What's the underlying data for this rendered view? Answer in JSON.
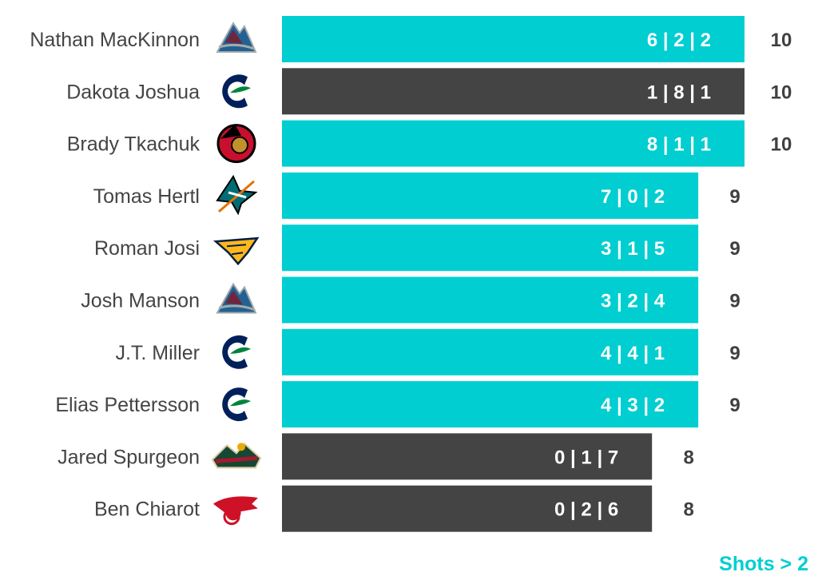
{
  "chart_data": {
    "type": "bar",
    "orientation": "horizontal",
    "categories": [
      "Nathan MacKinnon",
      "Dakota Joshua",
      "Brady Tkachuk",
      "Tomas Hertl",
      "Roman Josi",
      "Josh Manson",
      "J.T. Miller",
      "Elias Pettersson",
      "Jared Spurgeon",
      "Ben Chiarot"
    ],
    "values": [
      10,
      10,
      10,
      9,
      9,
      9,
      9,
      9,
      8,
      8
    ],
    "bar_labels": [
      "6 | 2 | 2",
      "1 | 8 | 1",
      "8 | 1 | 1",
      "7 | 0 | 2",
      "3 | 1 | 5",
      "3 | 2 | 4",
      "4 | 4 | 1",
      "4 | 3 | 2",
      "0 | 1 | 7",
      "0 | 2 | 6"
    ],
    "teams": [
      "avalanche-logo-icon",
      "canucks-logo-icon",
      "senators-logo-icon",
      "sharks-logo-icon",
      "predators-logo-icon",
      "avalanche-logo-icon",
      "canucks-logo-icon",
      "canucks-logo-icon",
      "wild-logo-icon",
      "red-wings-logo-icon"
    ],
    "highlight": [
      true,
      false,
      true,
      true,
      true,
      true,
      true,
      true,
      false,
      false
    ],
    "xlim": [
      0,
      10
    ],
    "grid": false,
    "legend": "none",
    "footnote": "Shots > 2",
    "colors": {
      "highlight": "#00CED1",
      "other": "#444444",
      "total_text": "#404040",
      "name_text": "#444444",
      "footnote": "#00CED1"
    }
  }
}
